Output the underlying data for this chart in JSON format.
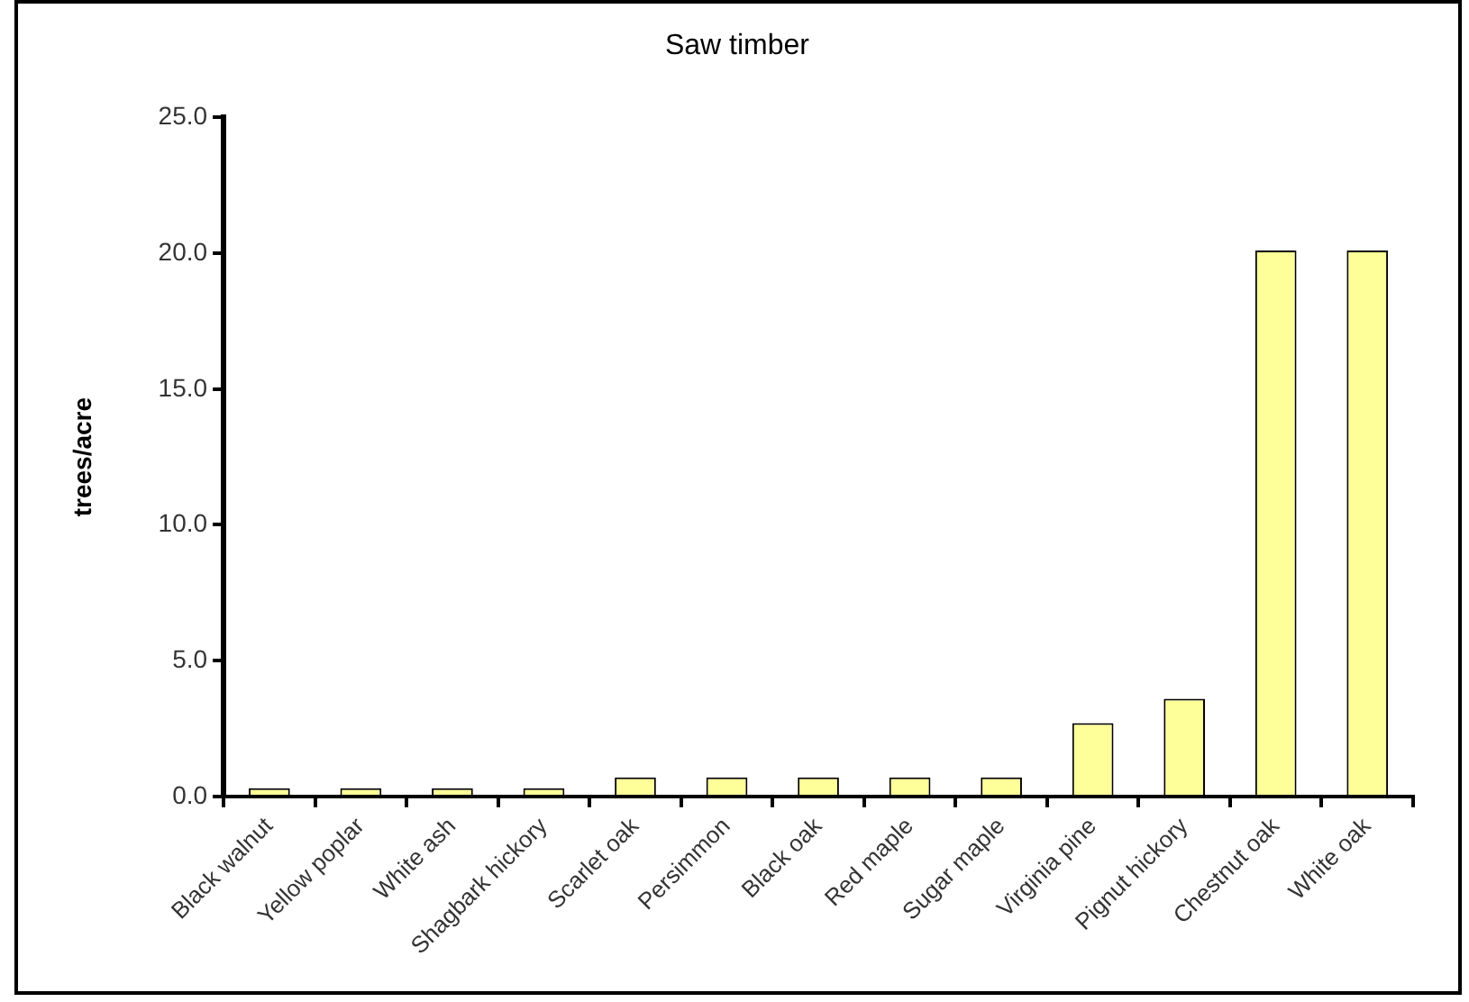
{
  "chart_data": {
    "type": "bar",
    "title": "Saw timber",
    "ylabel": "trees/acre",
    "categories": [
      "Black walnut",
      "Yellow poplar",
      "White ash",
      "Shagbark hickory",
      "Scarlet oak",
      "Persimmon",
      "Black oak",
      "Red maple",
      "Sugar maple",
      "Virginia pine",
      "Pignut hickory",
      "Chestnut oak",
      "White oak"
    ],
    "values": [
      0.3,
      0.3,
      0.3,
      0.3,
      0.7,
      0.7,
      0.7,
      0.7,
      0.7,
      2.7,
      3.6,
      20.1,
      20.1
    ],
    "color": "#ffff99",
    "ylim": [
      0,
      25
    ],
    "yticks": [
      {
        "value": 0,
        "label": "0.0"
      },
      {
        "value": 5,
        "label": "5.0"
      },
      {
        "value": 10,
        "label": "10.0"
      },
      {
        "value": 15,
        "label": "15.0"
      },
      {
        "value": 20,
        "label": "20.0"
      },
      {
        "value": 25,
        "label": "25.0"
      }
    ],
    "grid": false,
    "legend": false
  }
}
